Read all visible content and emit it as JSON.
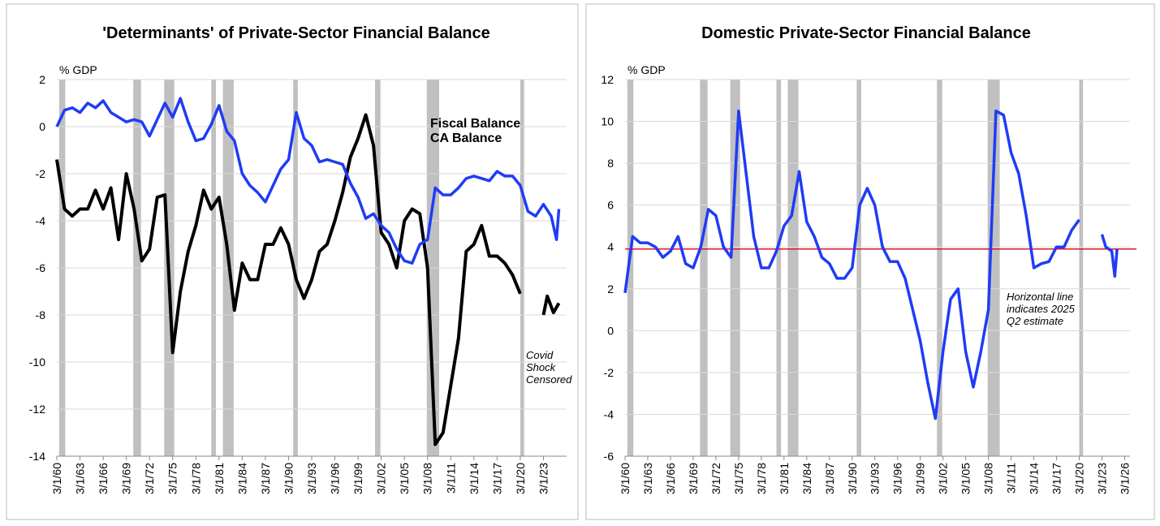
{
  "chart_data": [
    {
      "type": "line",
      "title": "'Determinants' of Private-Sector Financial Balance",
      "ylabel": "% GDP",
      "xlim": [
        1960,
        2026
      ],
      "ylim": [
        -14,
        2
      ],
      "yticks": [
        -14,
        -12,
        -10,
        -8,
        -6,
        -4,
        -2,
        0,
        2
      ],
      "grid": true,
      "xticks": [
        {
          "value": 1960,
          "label": "3/1/60"
        },
        {
          "value": 1963,
          "label": "3/1/63"
        },
        {
          "value": 1966,
          "label": "3/1/66"
        },
        {
          "value": 1969,
          "label": "3/1/69"
        },
        {
          "value": 1972,
          "label": "3/1/72"
        },
        {
          "value": 1975,
          "label": "3/1/75"
        },
        {
          "value": 1978,
          "label": "3/1/78"
        },
        {
          "value": 1981,
          "label": "3/1/81"
        },
        {
          "value": 1984,
          "label": "3/1/84"
        },
        {
          "value": 1987,
          "label": "3/1/87"
        },
        {
          "value": 1990,
          "label": "3/1/90"
        },
        {
          "value": 1993,
          "label": "3/1/93"
        },
        {
          "value": 1996,
          "label": "3/1/96"
        },
        {
          "value": 1999,
          "label": "3/1/99"
        },
        {
          "value": 2002,
          "label": "3/1/02"
        },
        {
          "value": 2005,
          "label": "3/1/05"
        },
        {
          "value": 2008,
          "label": "3/1/08"
        },
        {
          "value": 2011,
          "label": "3/1/11"
        },
        {
          "value": 2014,
          "label": "3/1/14"
        },
        {
          "value": 2017,
          "label": "3/1/17"
        },
        {
          "value": 2020,
          "label": "3/1/20"
        },
        {
          "value": 2023,
          "label": "3/1/23"
        }
      ],
      "recessions": [
        [
          1960.3,
          1961.1
        ],
        [
          1969.9,
          1970.9
        ],
        [
          1973.9,
          1975.2
        ],
        [
          1980.0,
          1980.6
        ],
        [
          1981.5,
          1982.9
        ],
        [
          1990.6,
          1991.2
        ],
        [
          2001.2,
          2001.9
        ],
        [
          2007.9,
          2009.5
        ],
        [
          2020.0,
          2020.5
        ]
      ],
      "recession_color": "#c0c0c0",
      "series": [
        {
          "name": "Fiscal Balance",
          "color": "#000000",
          "x": [
            1960,
            1961,
            1962,
            1963,
            1964,
            1965,
            1966,
            1967,
            1968,
            1969,
            1970,
            1971,
            1972,
            1973,
            1974,
            1975,
            1976,
            1977,
            1978,
            1979,
            1980,
            1981,
            1982,
            1983,
            1984,
            1985,
            1986,
            1987,
            1988,
            1989,
            1990,
            1991,
            1992,
            1993,
            1994,
            1995,
            1996,
            1997,
            1998,
            1999,
            2000,
            2001,
            2002,
            2003,
            2004,
            2005,
            2006,
            2007,
            2008,
            2009,
            2010,
            2011,
            2012,
            2013,
            2014,
            2015,
            2016,
            2017,
            2018,
            2019,
            2020,
            2021,
            2023,
            2023.5,
            2024.3,
            2025
          ],
          "values": [
            -1.4,
            -3.5,
            -3.8,
            -3.5,
            -3.5,
            -2.7,
            -3.5,
            -2.6,
            -4.8,
            -2.0,
            -3.5,
            -5.7,
            -5.2,
            -3.0,
            -2.9,
            -9.6,
            -7.0,
            -5.3,
            -4.2,
            -2.7,
            -3.5,
            -3.0,
            -5.0,
            -7.8,
            -5.8,
            -6.5,
            -6.5,
            -5.0,
            -5.0,
            -4.3,
            -5.0,
            -6.5,
            -7.3,
            -6.5,
            -5.3,
            -5.0,
            -4.0,
            -2.8,
            -1.3,
            -0.5,
            0.5,
            -0.8,
            -4.5,
            -5.0,
            -6.0,
            -4.0,
            -3.5,
            -3.7,
            -6.0,
            -13.5,
            -13.0,
            -11.0,
            -9.0,
            -5.3,
            -5.0,
            -4.2,
            -5.5,
            -5.5,
            -5.8,
            -6.3,
            -7.1,
            null,
            -8.0,
            -7.2,
            -7.9,
            -7.5
          ]
        },
        {
          "name": "CA Balance",
          "color": "#1f3cf5",
          "x": [
            1960,
            1961,
            1962,
            1963,
            1964,
            1965,
            1966,
            1967,
            1968,
            1969,
            1970,
            1971,
            1972,
            1973,
            1974,
            1975,
            1976,
            1977,
            1978,
            1979,
            1980,
            1981,
            1982,
            1983,
            1984,
            1985,
            1986,
            1987,
            1988,
            1989,
            1990,
            1991,
            1992,
            1993,
            1994,
            1995,
            1996,
            1997,
            1998,
            1999,
            2000,
            2001,
            2002,
            2003,
            2004,
            2005,
            2006,
            2007,
            2008,
            2009,
            2010,
            2011,
            2012,
            2013,
            2014,
            2015,
            2016,
            2017,
            2018,
            2019,
            2020,
            2021,
            2022,
            2023,
            2024,
            2024.7,
            2025
          ],
          "values": [
            0,
            0.7,
            0.8,
            0.6,
            1.0,
            0.8,
            1.1,
            0.6,
            0.4,
            0.2,
            0.3,
            0.2,
            -0.4,
            0.3,
            1.0,
            0.4,
            1.2,
            0.2,
            -0.6,
            -0.5,
            0.1,
            0.9,
            -0.2,
            -0.6,
            -2.0,
            -2.5,
            -2.8,
            -3.2,
            -2.5,
            -1.8,
            -1.4,
            0.6,
            -0.5,
            -0.8,
            -1.5,
            -1.4,
            -1.5,
            -1.6,
            -2.4,
            -3.0,
            -3.9,
            -3.7,
            -4.2,
            -4.5,
            -5.2,
            -5.7,
            -5.8,
            -5.0,
            -4.8,
            -2.6,
            -2.9,
            -2.9,
            -2.6,
            -2.2,
            -2.1,
            -2.2,
            -2.3,
            -1.9,
            -2.1,
            -2.1,
            -2.5,
            -3.6,
            -3.8,
            -3.3,
            -3.8,
            -4.8,
            -3.5
          ]
        }
      ],
      "annotation": [
        "Covid",
        "Shock",
        "Censored"
      ]
    },
    {
      "type": "line",
      "title": "Domestic Private-Sector Financial Balance",
      "ylabel": "% GDP",
      "xlim": [
        1960,
        2026.7
      ],
      "ylim": [
        -6,
        12
      ],
      "yticks": [
        -6,
        -4,
        -2,
        0,
        2,
        4,
        6,
        8,
        10,
        12
      ],
      "grid": true,
      "xticks": [
        {
          "value": 1960,
          "label": "3/1/60"
        },
        {
          "value": 1963,
          "label": "3/1/63"
        },
        {
          "value": 1966,
          "label": "3/1/66"
        },
        {
          "value": 1969,
          "label": "3/1/69"
        },
        {
          "value": 1972,
          "label": "3/1/72"
        },
        {
          "value": 1975,
          "label": "3/1/75"
        },
        {
          "value": 1978,
          "label": "3/1/78"
        },
        {
          "value": 1981,
          "label": "3/1/81"
        },
        {
          "value": 1984,
          "label": "3/1/84"
        },
        {
          "value": 1987,
          "label": "3/1/87"
        },
        {
          "value": 1990,
          "label": "3/1/90"
        },
        {
          "value": 1993,
          "label": "3/1/93"
        },
        {
          "value": 1996,
          "label": "3/1/96"
        },
        {
          "value": 1999,
          "label": "3/1/99"
        },
        {
          "value": 2002,
          "label": "3/1/02"
        },
        {
          "value": 2005,
          "label": "3/1/05"
        },
        {
          "value": 2008,
          "label": "3/1/08"
        },
        {
          "value": 2011,
          "label": "3/1/11"
        },
        {
          "value": 2014,
          "label": "3/1/14"
        },
        {
          "value": 2017,
          "label": "3/1/17"
        },
        {
          "value": 2020,
          "label": "3/1/20"
        },
        {
          "value": 2023,
          "label": "3/1/23"
        },
        {
          "value": 2026,
          "label": "3/1/26"
        }
      ],
      "recessions": [
        [
          1960.3,
          1961.1
        ],
        [
          1969.9,
          1970.9
        ],
        [
          1973.9,
          1975.2
        ],
        [
          1980.0,
          1980.6
        ],
        [
          1981.5,
          1982.9
        ],
        [
          1990.6,
          1991.2
        ],
        [
          2001.2,
          2001.9
        ],
        [
          2007.9,
          2009.5
        ],
        [
          2020.0,
          2020.5
        ]
      ],
      "recession_color": "#c0c0c0",
      "series": [
        {
          "color": "#1f3cf5",
          "x": [
            1960,
            1961,
            1962,
            1963,
            1964,
            1965,
            1966,
            1967,
            1968,
            1969,
            1970,
            1971,
            1972,
            1973,
            1974,
            1975,
            1976,
            1977,
            1978,
            1979,
            1980,
            1981,
            1982,
            1983,
            1984,
            1985,
            1986,
            1987,
            1988,
            1989,
            1990,
            1991,
            1992,
            1993,
            1994,
            1995,
            1996,
            1997,
            1998,
            1999,
            2000,
            2001,
            2002,
            2003,
            2004,
            2005,
            2006,
            2007,
            2008,
            2009,
            2010,
            2011,
            2012,
            2013,
            2014,
            2015,
            2016,
            2017,
            2018,
            2019,
            2020,
            2021,
            2023,
            2023.5,
            2024.3,
            2024.7,
            2025
          ],
          "values": [
            1.8,
            4.5,
            4.2,
            4.2,
            4.0,
            3.5,
            3.8,
            4.5,
            3.2,
            3.0,
            4.0,
            5.8,
            5.5,
            4.0,
            3.5,
            10.5,
            7.5,
            4.5,
            3.0,
            3.0,
            3.8,
            5.0,
            5.5,
            7.6,
            5.2,
            4.5,
            3.5,
            3.2,
            2.5,
            2.5,
            3.0,
            6.0,
            6.8,
            6.0,
            4.0,
            3.3,
            3.3,
            2.5,
            1.0,
            -0.5,
            -2.5,
            -4.2,
            -1.0,
            1.5,
            2.0,
            -1.0,
            -2.7,
            -1.0,
            1.0,
            10.5,
            10.3,
            8.5,
            7.5,
            5.5,
            3.0,
            3.2,
            3.3,
            4.0,
            4.0,
            4.8,
            5.3,
            null,
            4.6,
            4.0,
            3.8,
            2.6,
            3.9
          ]
        }
      ],
      "hline": {
        "value": 3.9,
        "color": "#e8112d"
      },
      "annotation": [
        "Horizontal line",
        "indicates 2025",
        "Q2 estimate"
      ]
    }
  ]
}
